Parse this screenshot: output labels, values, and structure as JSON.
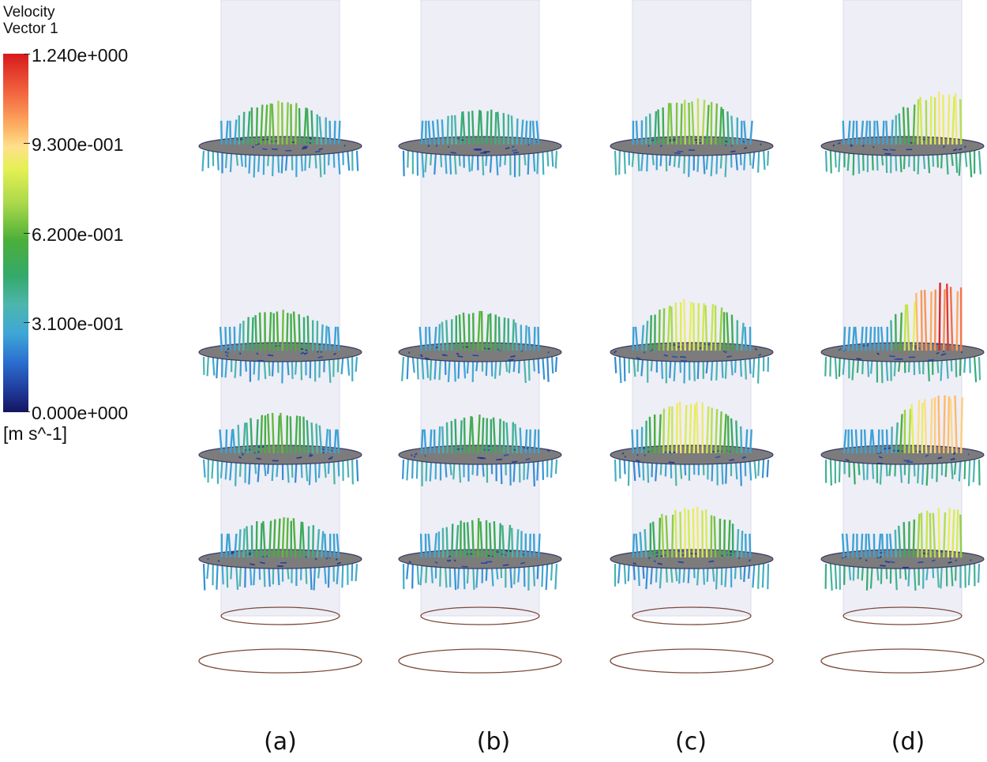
{
  "legend": {
    "title_line1": "Velocity",
    "title_line2": "Vector 1",
    "ticks": [
      "1.240e+000",
      "9.300e-001",
      "6.200e-001",
      "3.100e-001",
      "0.000e+000"
    ],
    "unit": "[m s^-1]",
    "colormap": [
      "#13155e",
      "#1f3a9a",
      "#2b6fd0",
      "#3fa7d6",
      "#4db6ac",
      "#34a96a",
      "#4caf3a",
      "#a8d84a",
      "#e6f055",
      "#fee08b",
      "#fdae61",
      "#f46d43",
      "#d7191c"
    ]
  },
  "panels": [
    {
      "label": "(a)",
      "plane_peaks": [
        0.72,
        0.68,
        0.68,
        0.66
      ]
    },
    {
      "label": "(b)",
      "plane_peaks": [
        0.55,
        0.65,
        0.62,
        0.64
      ]
    },
    {
      "label": "(c)",
      "plane_peaks": [
        0.78,
        0.92,
        0.95,
        0.88
      ]
    },
    {
      "label": "(d)",
      "plane_peaks": [
        0.92,
        1.24,
        1.1,
        0.86
      ]
    }
  ],
  "colors": {
    "cylinder": "#eeeef7",
    "cylinder_edge": "#dcdce8",
    "plate": "#7c7c7c",
    "ring": "#7b4a3a"
  }
}
